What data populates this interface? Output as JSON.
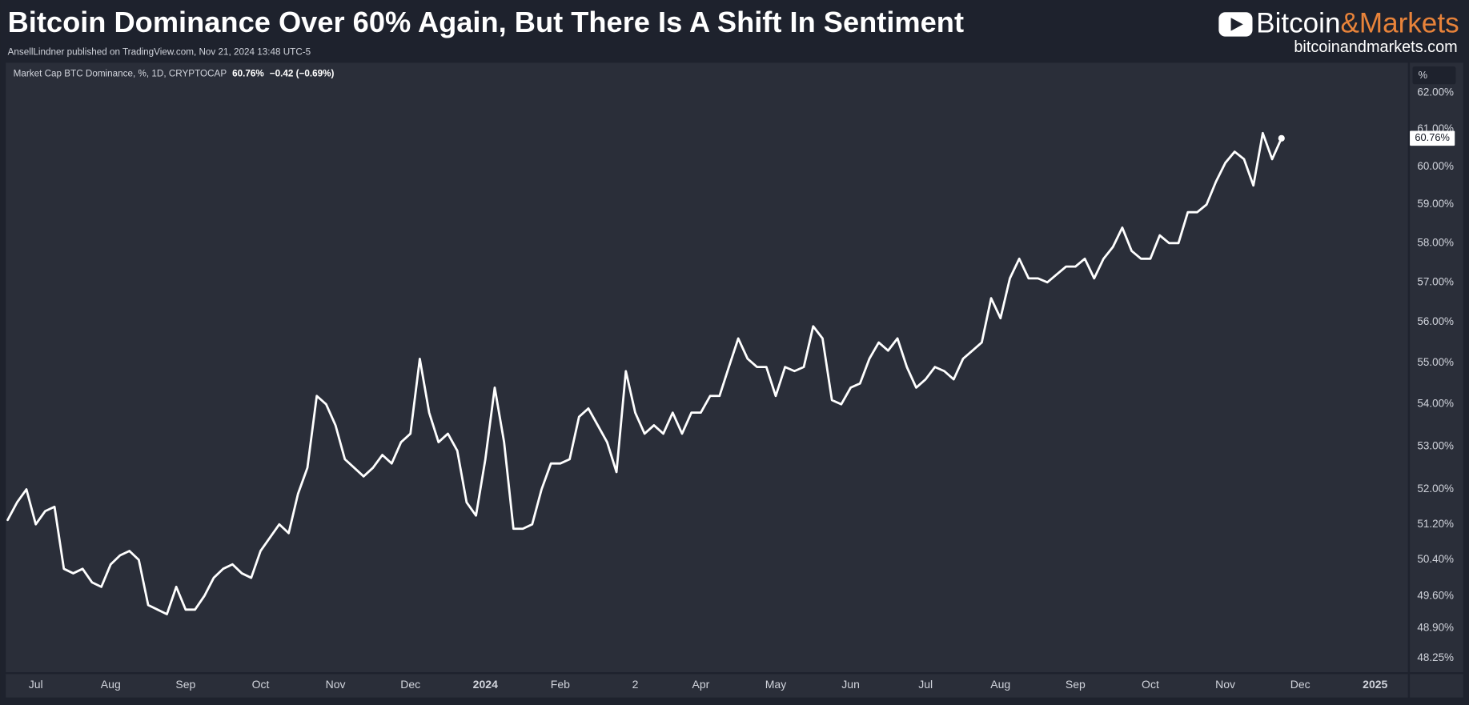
{
  "header": {
    "title": "Bitcoin Dominance Over 60% Again, But There Is A Shift In Sentiment",
    "subtitle": "AnsellLindner published on TradingView.com, Nov 21, 2024 13:48 UTC-5",
    "brand_left": "Bitcoin",
    "brand_right": "&Markets",
    "website": "bitcoinandmarkets.com"
  },
  "chart_data": {
    "type": "line",
    "legend_label": "Market Cap BTC Dominance, %, 1D, CRYPTOCAP",
    "change_label": "−0.42 (−0.69%)",
    "axis_unit": "%",
    "color": "#ffffff",
    "log_scale": true,
    "grid": false,
    "categories": [
      null,
      null,
      null,
      "Jul",
      null,
      null,
      null,
      null,
      null,
      null,
      null,
      "Aug",
      null,
      null,
      null,
      null,
      null,
      null,
      null,
      "Sep",
      null,
      null,
      null,
      null,
      null,
      null,
      null,
      "Oct",
      null,
      null,
      null,
      null,
      null,
      null,
      null,
      "Nov",
      null,
      null,
      null,
      null,
      null,
      null,
      null,
      "Dec",
      null,
      null,
      null,
      null,
      null,
      null,
      null,
      "2024",
      null,
      null,
      null,
      null,
      null,
      null,
      null,
      "Feb",
      null,
      null,
      null,
      null,
      null,
      null,
      null,
      "2",
      null,
      null,
      null,
      null,
      null,
      null,
      "Apr",
      null,
      null,
      null,
      null,
      null,
      null,
      null,
      "May",
      null,
      null,
      null,
      null,
      null,
      null,
      null,
      "Jun",
      null,
      null,
      null,
      null,
      null,
      null,
      null,
      "Jul",
      null,
      null,
      null,
      null,
      null,
      null,
      null,
      "Aug",
      null,
      null,
      null,
      null,
      null,
      null,
      null,
      "Sep",
      null,
      null,
      null,
      null,
      null,
      null,
      null,
      "Oct",
      null,
      null,
      null,
      null,
      null,
      null,
      null,
      "Nov",
      null,
      null,
      null,
      null,
      null,
      null,
      null,
      "Dec",
      null,
      null,
      null,
      null,
      null,
      null,
      null,
      "2025"
    ],
    "values": [
      51.3,
      51.7,
      52.0,
      51.2,
      51.5,
      51.6,
      50.2,
      50.1,
      50.2,
      49.9,
      49.8,
      50.3,
      50.5,
      50.6,
      50.4,
      49.4,
      49.3,
      49.2,
      49.8,
      49.3,
      49.3,
      49.6,
      50.0,
      50.2,
      50.3,
      50.1,
      50.0,
      50.6,
      50.9,
      51.2,
      51.0,
      51.9,
      52.5,
      54.2,
      54.0,
      53.5,
      52.7,
      52.5,
      52.3,
      52.5,
      52.8,
      52.6,
      53.1,
      53.3,
      55.1,
      53.8,
      53.1,
      53.3,
      52.9,
      51.7,
      51.4,
      52.7,
      54.4,
      53.1,
      51.1,
      51.1,
      51.2,
      52.0,
      52.6,
      52.6,
      52.7,
      53.7,
      53.9,
      53.5,
      53.1,
      52.4,
      54.8,
      53.8,
      53.3,
      53.5,
      53.3,
      53.8,
      53.3,
      53.8,
      53.8,
      54.2,
      54.2,
      54.9,
      55.6,
      55.1,
      54.9,
      54.9,
      54.2,
      54.9,
      54.8,
      54.9,
      55.9,
      55.6,
      54.1,
      54.0,
      54.4,
      54.5,
      55.1,
      55.5,
      55.3,
      55.6,
      54.9,
      54.4,
      54.6,
      54.9,
      54.8,
      54.6,
      55.1,
      55.3,
      55.5,
      56.6,
      56.1,
      57.1,
      57.6,
      57.1,
      57.1,
      57.0,
      57.2,
      57.4,
      57.4,
      57.6,
      57.1,
      57.6,
      57.9,
      58.4,
      57.8,
      57.6,
      57.6,
      58.2,
      58.0,
      58.0,
      58.8,
      58.8,
      59.0,
      59.6,
      60.1,
      60.4,
      60.2,
      59.5,
      60.9,
      60.2,
      60.76,
      null,
      null,
      null,
      null,
      null,
      null,
      null,
      null,
      null,
      null
    ],
    "value_labels": [
      null,
      null,
      null,
      null,
      null,
      null,
      null,
      null,
      null,
      null,
      null,
      null,
      null,
      null,
      null,
      null,
      null,
      null,
      null,
      null,
      null,
      null,
      null,
      null,
      null,
      null,
      null,
      null,
      null,
      null,
      null,
      null,
      null,
      null,
      null,
      null,
      null,
      null,
      null,
      null,
      null,
      null,
      null,
      null,
      null,
      null,
      null,
      null,
      null,
      null,
      null,
      null,
      null,
      null,
      null,
      null,
      null,
      null,
      null,
      null,
      null,
      null,
      null,
      null,
      null,
      null,
      null,
      null,
      null,
      null,
      null,
      null,
      null,
      null,
      null,
      null,
      null,
      null,
      null,
      null,
      null,
      null,
      null,
      null,
      null,
      null,
      null,
      null,
      null,
      null,
      null,
      null,
      null,
      null,
      null,
      null,
      null,
      null,
      null,
      null,
      null,
      null,
      null,
      null,
      null,
      null,
      null,
      null,
      null,
      null,
      null,
      null,
      null,
      null,
      null,
      null,
      null,
      null,
      null,
      null,
      null,
      null,
      null,
      null,
      null,
      null,
      null,
      null,
      null,
      null,
      null,
      null,
      null,
      null,
      null,
      null,
      "60.76%",
      null,
      null,
      null,
      null,
      null,
      null,
      null,
      null,
      null,
      null
    ],
    "ylim": [
      47.95,
      62.83
    ],
    "yticks": [
      {
        "value": 62,
        "label": "62.00%"
      },
      {
        "value": 61,
        "label": "61.00%"
      },
      {
        "value": 60,
        "label": "60.00%"
      },
      {
        "value": 59,
        "label": "59.00%"
      },
      {
        "value": 58,
        "label": "58.00%"
      },
      {
        "value": 57,
        "label": "57.00%"
      },
      {
        "value": 56,
        "label": "56.00%"
      },
      {
        "value": 55,
        "label": "55.00%"
      },
      {
        "value": 54,
        "label": "54.00%"
      },
      {
        "value": 53,
        "label": "53.00%"
      },
      {
        "value": 52,
        "label": "52.00%"
      },
      {
        "value": 51.2,
        "label": "51.20%"
      },
      {
        "value": 50.4,
        "label": "50.40%"
      },
      {
        "value": 49.6,
        "label": "49.60%"
      },
      {
        "value": 48.9,
        "label": "48.90%"
      },
      {
        "value": 48.25,
        "label": "48.25%"
      }
    ]
  }
}
